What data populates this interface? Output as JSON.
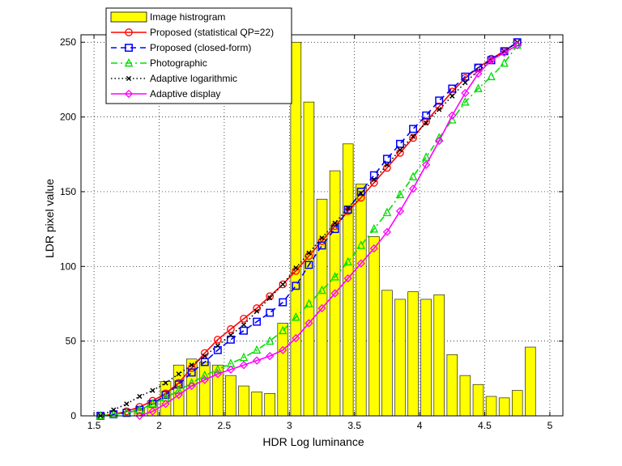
{
  "chart_data": {
    "type": "line",
    "xlabel": "HDR Log luminance",
    "ylabel": "LDR pixel value",
    "xlim": [
      1.4,
      5.1
    ],
    "ylim": [
      0,
      255
    ],
    "xticks": [
      1.5,
      2,
      2.5,
      3,
      3.5,
      4,
      4.5,
      5
    ],
    "yticks": [
      0,
      50,
      100,
      150,
      200,
      250
    ],
    "grid": true,
    "legend_position": "top-left",
    "histogram": {
      "name": "Image histrogram",
      "type": "bar",
      "color": "#ffff00",
      "x": [
        1.85,
        1.95,
        2.05,
        2.15,
        2.25,
        2.35,
        2.45,
        2.55,
        2.65,
        2.75,
        2.85,
        2.95,
        3.05,
        3.15,
        3.25,
        3.35,
        3.45,
        3.55,
        3.65,
        3.75,
        3.85,
        3.95,
        4.05,
        4.15,
        4.25,
        4.35,
        4.45,
        4.55,
        4.65,
        4.75,
        4.85
      ],
      "values": [
        5,
        10,
        23,
        34,
        38,
        36,
        34,
        27,
        20,
        16,
        15,
        62,
        250,
        210,
        145,
        164,
        182,
        155,
        120,
        84,
        78,
        83,
        78,
        81,
        41,
        27,
        21,
        13,
        12,
        17,
        46
      ]
    },
    "series": [
      {
        "name": "Proposed (statistical QP=22)",
        "color": "#ff0000",
        "style": "solid",
        "marker": "circle",
        "x": [
          1.55,
          1.65,
          1.75,
          1.85,
          1.95,
          2.05,
          2.15,
          2.25,
          2.35,
          2.45,
          2.55,
          2.65,
          2.75,
          2.85,
          2.95,
          3.05,
          3.15,
          3.25,
          3.35,
          3.45,
          3.55,
          3.65,
          3.75,
          3.85,
          3.95,
          4.05,
          4.15,
          4.25,
          4.35,
          4.45,
          4.55,
          4.65,
          4.75
        ],
        "values": [
          0,
          1,
          3,
          6,
          10,
          15,
          22,
          32,
          42,
          51,
          58,
          65,
          72,
          80,
          88,
          97,
          107,
          117,
          127,
          137,
          146,
          156,
          166,
          176,
          186,
          197,
          207,
          217,
          226,
          233,
          239,
          244,
          250
        ]
      },
      {
        "name": "Proposed (closed-form)",
        "color": "#0000ff",
        "style": "dashed",
        "marker": "square",
        "x": [
          1.55,
          1.65,
          1.75,
          1.85,
          1.95,
          2.05,
          2.15,
          2.25,
          2.35,
          2.45,
          2.55,
          2.65,
          2.75,
          2.85,
          2.95,
          3.05,
          3.15,
          3.25,
          3.35,
          3.45,
          3.55,
          3.65,
          3.75,
          3.85,
          3.95,
          4.05,
          4.15,
          4.25,
          4.35,
          4.45,
          4.55,
          4.65,
          4.75
        ],
        "values": [
          0,
          1,
          2,
          4,
          8,
          14,
          21,
          29,
          36,
          44,
          51,
          57,
          63,
          69,
          76,
          87,
          101,
          114,
          125,
          138,
          150,
          161,
          172,
          182,
          192,
          201,
          211,
          219,
          227,
          233,
          238,
          244,
          250
        ]
      },
      {
        "name": "Photographic",
        "color": "#00dd00",
        "style": "dash-dot",
        "marker": "triangle",
        "x": [
          1.55,
          1.65,
          1.75,
          1.85,
          1.95,
          2.05,
          2.15,
          2.25,
          2.35,
          2.45,
          2.55,
          2.65,
          2.75,
          2.85,
          2.95,
          3.05,
          3.15,
          3.25,
          3.35,
          3.45,
          3.55,
          3.65,
          3.75,
          3.85,
          3.95,
          4.05,
          4.15,
          4.25,
          4.35,
          4.45,
          4.55,
          4.65,
          4.75
        ],
        "values": [
          0,
          1,
          2,
          4,
          8,
          12,
          17,
          22,
          27,
          31,
          35,
          39,
          44,
          50,
          57,
          66,
          75,
          84,
          93,
          103,
          114,
          125,
          136,
          148,
          160,
          173,
          186,
          198,
          210,
          219,
          227,
          236,
          248
        ]
      },
      {
        "name": "Adaptive logarithmic",
        "color": "#000000",
        "style": "dotted",
        "marker": "x",
        "x": [
          1.55,
          1.65,
          1.75,
          1.85,
          1.95,
          2.05,
          2.15,
          2.25,
          2.35,
          2.45,
          2.55,
          2.65,
          2.75,
          2.85,
          2.95,
          3.05,
          3.15,
          3.25,
          3.35,
          3.45,
          3.55,
          3.65,
          3.75,
          3.85,
          3.95,
          4.05,
          4.15,
          4.25,
          4.35,
          4.45,
          4.55,
          4.65,
          4.75
        ],
        "values": [
          0,
          4,
          8,
          13,
          17,
          22,
          28,
          34,
          40,
          47,
          54,
          61,
          70,
          79,
          88,
          99,
          109,
          119,
          129,
          139,
          149,
          158,
          168,
          178,
          187,
          196,
          205,
          214,
          223,
          231,
          238,
          244,
          250
        ]
      },
      {
        "name": "Adaptive display",
        "color": "#ff00ff",
        "style": "solid",
        "marker": "diamond",
        "x": [
          1.85,
          1.95,
          2.05,
          2.15,
          2.25,
          2.35,
          2.45,
          2.55,
          2.65,
          2.75,
          2.85,
          2.95,
          3.05,
          3.15,
          3.25,
          3.35,
          3.45,
          3.55,
          3.65,
          3.75,
          3.85,
          3.95,
          4.05,
          4.15,
          4.25,
          4.35,
          4.45,
          4.55,
          4.65,
          4.75
        ],
        "values": [
          0,
          3,
          8,
          14,
          20,
          24,
          28,
          31,
          34,
          37,
          40,
          44,
          52,
          62,
          72,
          82,
          92,
          102,
          112,
          123,
          137,
          152,
          168,
          184,
          201,
          216,
          229,
          238,
          243,
          248
        ]
      }
    ]
  }
}
